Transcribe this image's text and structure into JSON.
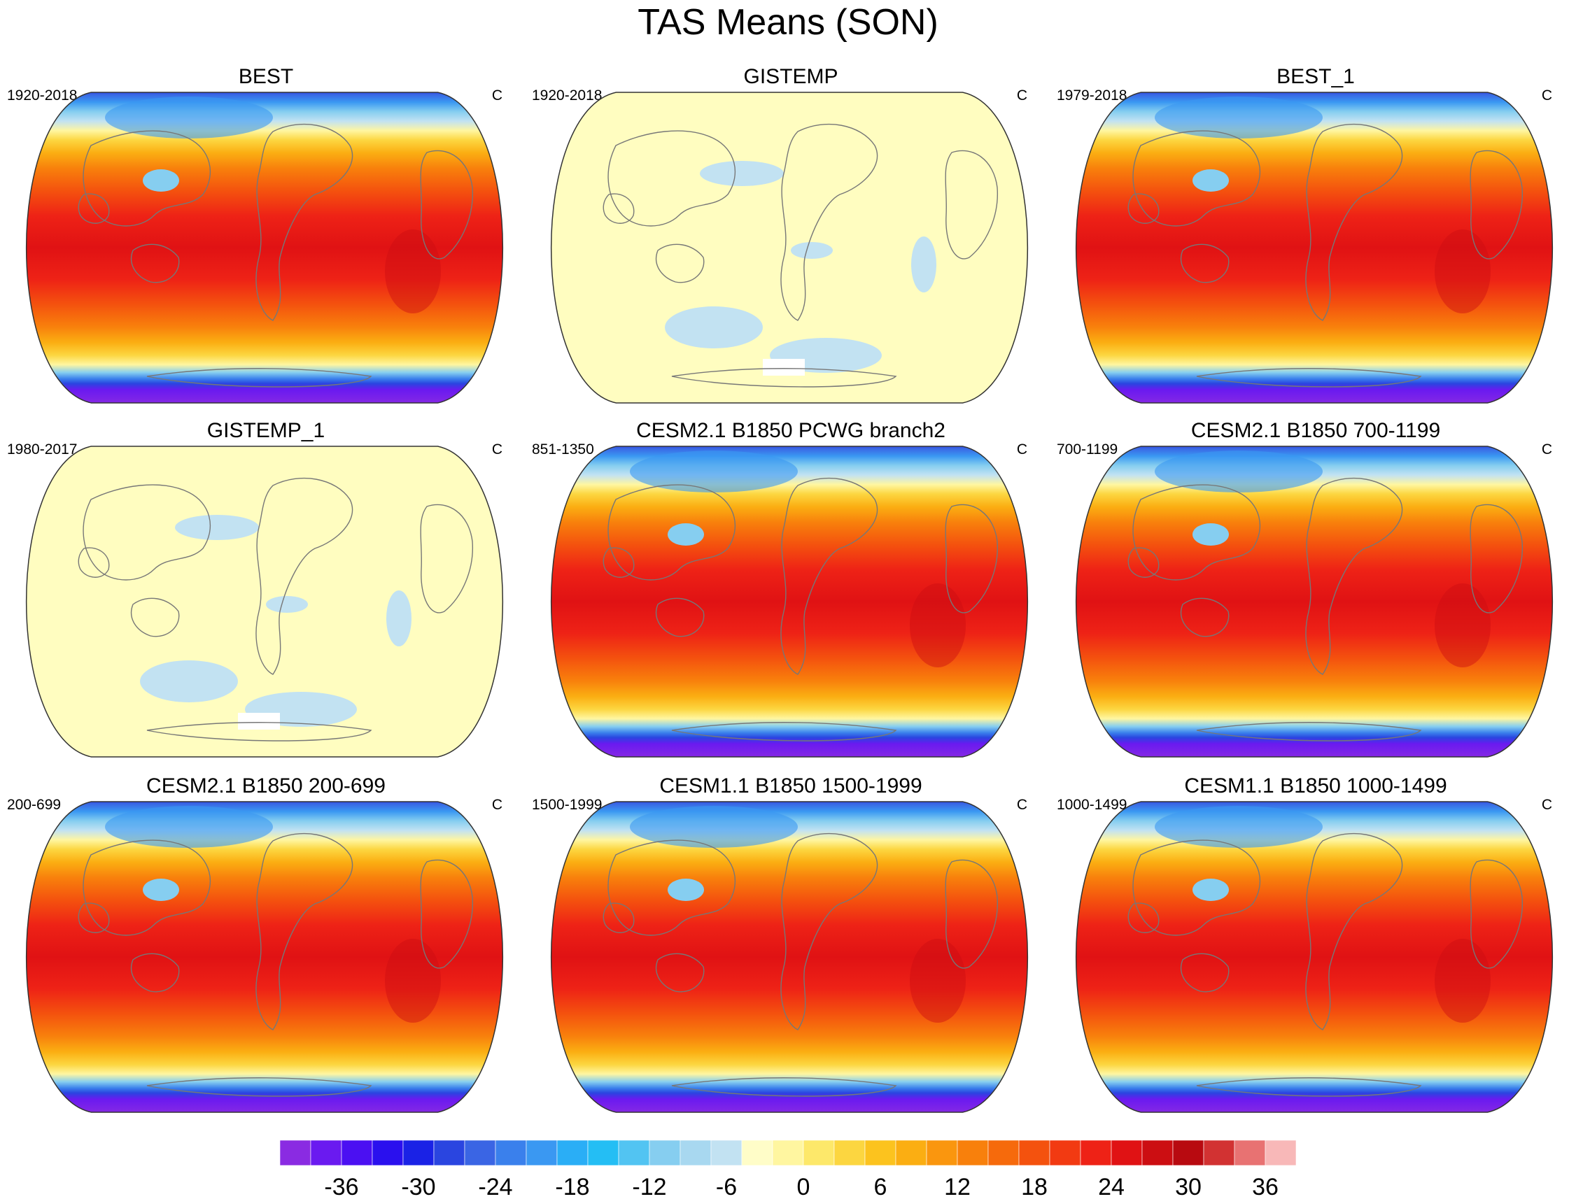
{
  "title": "TAS Means (SON)",
  "panels": [
    {
      "title": "BEST",
      "period": "1920-2018",
      "units": "C",
      "style": "full"
    },
    {
      "title": "GISTEMP",
      "period": "1920-2018",
      "units": "C",
      "style": "anomaly"
    },
    {
      "title": "BEST_1",
      "period": "1979-2018",
      "units": "C",
      "style": "full"
    },
    {
      "title": "GISTEMP_1",
      "period": "1980-2017",
      "units": "C",
      "style": "anomaly"
    },
    {
      "title": "CESM2.1 B1850 PCWG branch2",
      "period": "851-1350",
      "units": "C",
      "style": "full"
    },
    {
      "title": "CESM2.1 B1850 700-1199",
      "period": "700-1199",
      "units": "C",
      "style": "full"
    },
    {
      "title": "CESM2.1 B1850 200-699",
      "period": "200-699",
      "units": "C",
      "style": "full"
    },
    {
      "title": "CESM1.1 B1850 1500-1999",
      "period": "1500-1999",
      "units": "C",
      "style": "full"
    },
    {
      "title": "CESM1.1 B1850 1000-1499",
      "period": "1000-1499",
      "units": "C",
      "style": "full"
    }
  ],
  "colorbar": {
    "labels": [
      "-36",
      "-30",
      "-24",
      "-18",
      "-12",
      "-6",
      "0",
      "6",
      "12",
      "18",
      "24",
      "30",
      "36"
    ],
    "colors": [
      "#8a2be2",
      "#6a1af0",
      "#4b10f2",
      "#2a10ee",
      "#1a22e6",
      "#2a45e0",
      "#3a65e4",
      "#3a80ec",
      "#3a98f2",
      "#2aaef6",
      "#24bef4",
      "#52c4f2",
      "#86cef0",
      "#a8d8f0",
      "#c2e2f2",
      "#fffdc8",
      "#fff6a0",
      "#fde86a",
      "#fcd640",
      "#fcc31e",
      "#fbae12",
      "#fa960e",
      "#f8800c",
      "#f66a0c",
      "#f4520e",
      "#f23a12",
      "#ee2216",
      "#e01214",
      "#cc0e12",
      "#b80a10",
      "#d23232",
      "#e87272",
      "#f8b8b8"
    ]
  }
}
